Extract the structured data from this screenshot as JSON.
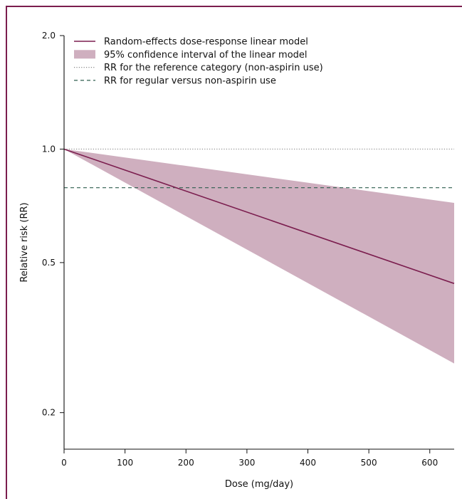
{
  "chart_data": {
    "type": "line",
    "title": "",
    "xlabel": "Dose (mg/day)",
    "ylabel": "Relative risk (RR)",
    "x_scale": "linear",
    "y_scale": "log",
    "xlim": [
      0,
      640
    ],
    "ylim": [
      0.16,
      2.0
    ],
    "x_ticks": [
      0,
      100,
      200,
      300,
      400,
      500,
      600
    ],
    "x_tick_labels": [
      "0",
      "100",
      "200",
      "300",
      "400",
      "500",
      "600"
    ],
    "y_ticks": [
      0.2,
      0.5,
      1.0,
      2.0
    ],
    "y_tick_labels": [
      "0.2",
      "0.5",
      "1.0",
      "2.0"
    ],
    "grid": false,
    "legend_position": "top-left",
    "series": [
      {
        "name": "Random-effects dose-response linear model",
        "kind": "line",
        "style": "solid",
        "color": "#7b1d4e",
        "x": [
          0,
          640
        ],
        "y": [
          1.0,
          0.44
        ]
      },
      {
        "name": "95% confidence interval of the linear model",
        "kind": "band",
        "color": "#cfafbf",
        "x": [
          0,
          640
        ],
        "y_lower": [
          1.0,
          0.27
        ],
        "y_upper": [
          1.0,
          0.72
        ]
      },
      {
        "name": "RR for the reference category (non-aspirin use)",
        "kind": "hline",
        "style": "dotted",
        "color": "#888888",
        "y": 1.0
      },
      {
        "name": "RR for regular versus non-aspirin use",
        "kind": "hline",
        "style": "dashed",
        "color": "#2f5f4f",
        "y": 0.79
      }
    ],
    "colors": {
      "frame": "#7b1d4e",
      "axis": "#111111"
    }
  }
}
